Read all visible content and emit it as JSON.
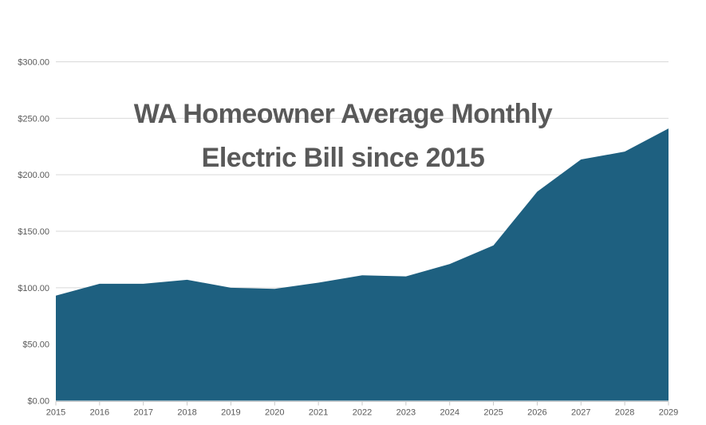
{
  "chart_data": {
    "type": "area",
    "title": "WA Homeowner Average Monthly Electric Bill since 2015",
    "title_lines": [
      "WA Homeowner Average Monthly",
      "Electric Bill since 2015"
    ],
    "categories": [
      "2015",
      "2016",
      "2017",
      "2018",
      "2019",
      "2020",
      "2021",
      "2022",
      "2023",
      "2024",
      "2025",
      "2026",
      "2027",
      "2028",
      "2029"
    ],
    "values": [
      93,
      103.5,
      103.5,
      107,
      100,
      99,
      104.5,
      111,
      110,
      121,
      137.5,
      185,
      213.5,
      220.5,
      241
    ],
    "xlabel": "",
    "ylabel": "",
    "ylim": [
      0,
      300
    ],
    "ytick_step": 50,
    "y_tick_labels": [
      "$0.00",
      "$50.00",
      "$100.00",
      "$150.00",
      "$200.00",
      "$250.00",
      "$300.00"
    ],
    "legend": "none",
    "grid": true,
    "colors": {
      "area": "#1E6080",
      "gridline": "#D9D9D9",
      "axis_line": "#C9C9C9",
      "tick_label": "#595959",
      "title": "#595959",
      "background": "#FFFFFF"
    }
  }
}
